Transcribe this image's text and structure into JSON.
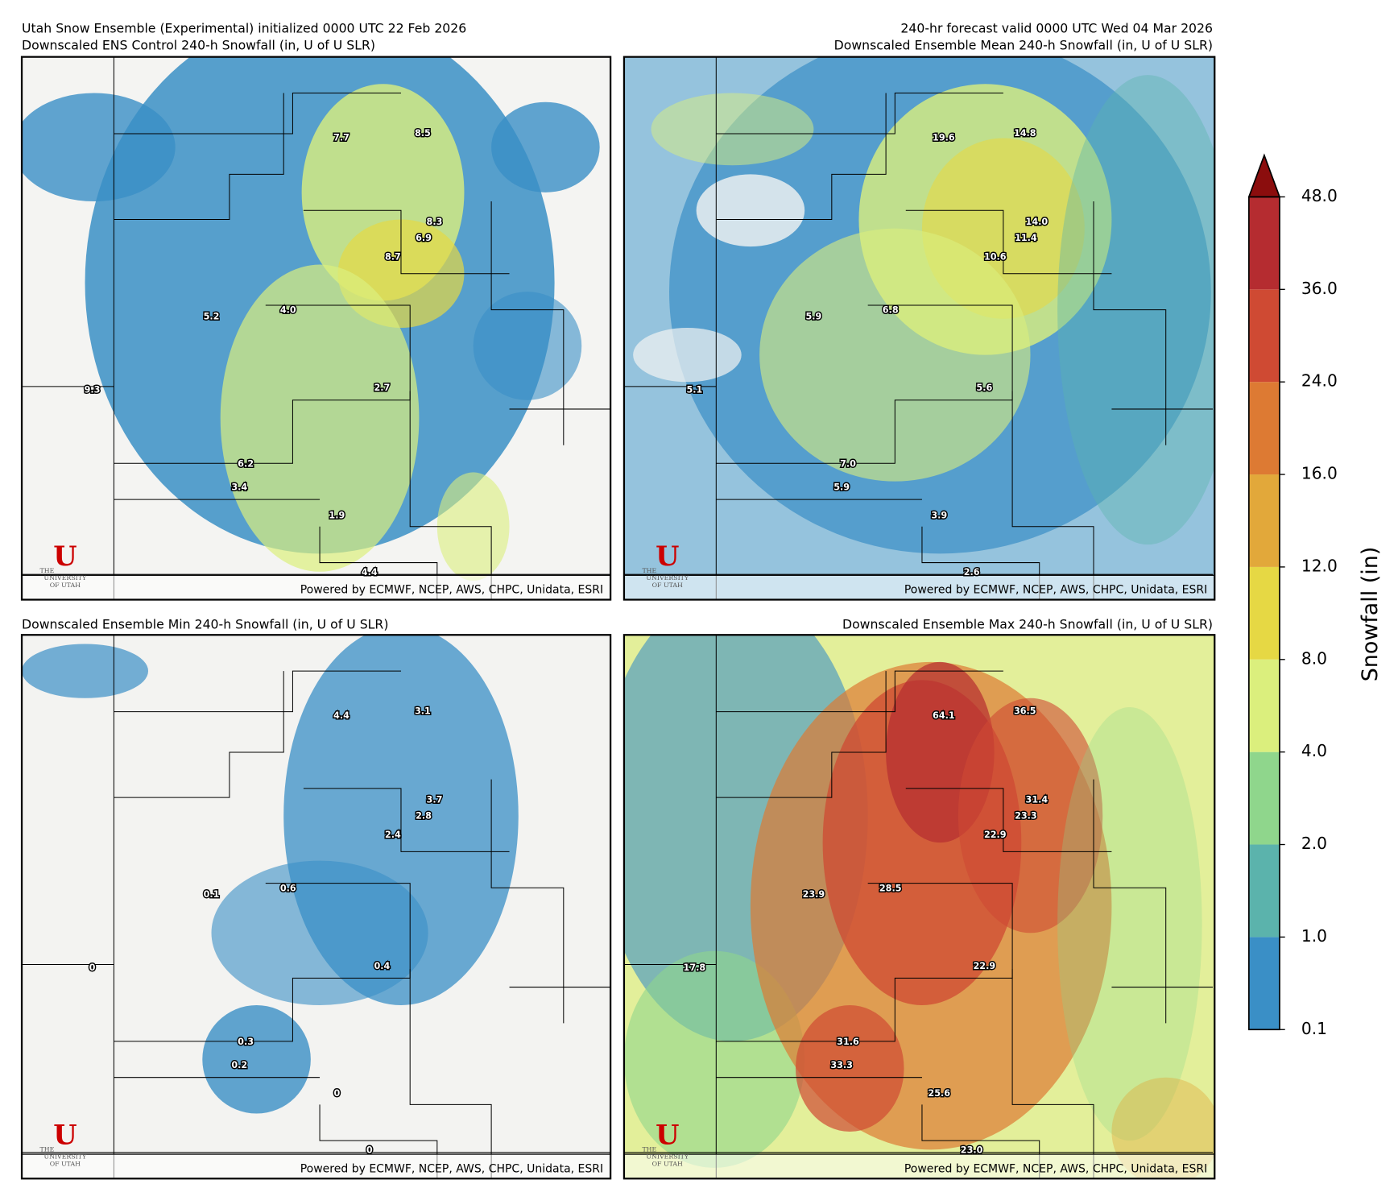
{
  "header": {
    "left": "Utah Snow Ensemble (Experimental) initialized 0000 UTC 22 Feb 2026",
    "right": "240-hr forecast valid 0000 UTC Wed 04 Mar 2026"
  },
  "logo": {
    "mark": "U",
    "top": "THE",
    "line1": "UNIVERSITY",
    "line2": "OF UTAH"
  },
  "panels": [
    {
      "title": "Downscaled ENS Control 240-h Snowfall (in, U of U SLR)",
      "labels": [
        "7.7",
        "8.5",
        "8.3",
        "6.9",
        "8.7",
        "5.2",
        "4.0",
        "9.3",
        "2.7",
        "6.2",
        "3.4",
        "1.9",
        "4.4"
      ],
      "credit": "Powered by ECMWF, NCEP, AWS, CHPC, Unidata, ESRI"
    },
    {
      "title": "Downscaled Ensemble Mean 240-h Snowfall (in, U of U SLR)",
      "labels": [
        "19.6",
        "14.8",
        "14.0",
        "11.4",
        "10.6",
        "5.9",
        "6.8",
        "5.1",
        "5.6",
        "7.0",
        "5.9",
        "3.9",
        "2.6"
      ],
      "credit": "Powered by ECMWF, NCEP, AWS, CHPC, Unidata, ESRI"
    },
    {
      "title": "Downscaled Ensemble Min 240-h Snowfall (in, U of U SLR)",
      "labels": [
        "4.4",
        "3.1",
        "3.7",
        "2.8",
        "2.4",
        "0.1",
        "0.6",
        "0",
        "0.4",
        "0.3",
        "0.2",
        "0",
        "0"
      ],
      "credit": "Powered by ECMWF, NCEP, AWS, CHPC, Unidata, ESRI"
    },
    {
      "title": "Downscaled Ensemble Max 240-h Snowfall (in, U of U SLR)",
      "labels": [
        "64.1",
        "36.5",
        "31.4",
        "23.3",
        "22.9",
        "23.9",
        "28.5",
        "17.8",
        "22.9",
        "31.6",
        "33.3",
        "25.6",
        "23.0"
      ],
      "credit": "Powered by ECMWF, NCEP, AWS, CHPC, Unidata, ESRI"
    }
  ],
  "colorbar": {
    "label": "Snowfall (in)",
    "ticks": [
      {
        "value": 0.1,
        "label": "0.1"
      },
      {
        "value": 1,
        "label": "1.0"
      },
      {
        "value": 2,
        "label": "2.0"
      },
      {
        "value": 4,
        "label": "4.0"
      },
      {
        "value": 8,
        "label": "8.0"
      },
      {
        "value": 12,
        "label": "12.0"
      },
      {
        "value": 16,
        "label": "16.0"
      },
      {
        "value": 24,
        "label": "24.0"
      },
      {
        "value": 36,
        "label": "36.0"
      },
      {
        "value": 48,
        "label": "48.0"
      }
    ],
    "colors": [
      "#3a8fc6",
      "#5bb3ac",
      "#8fd68c",
      "#dbef7d",
      "#e6d844",
      "#e2a83a",
      "#dd7a33",
      "#cf4a33",
      "#b52c30"
    ],
    "over_color": "#8b0d0d"
  }
}
